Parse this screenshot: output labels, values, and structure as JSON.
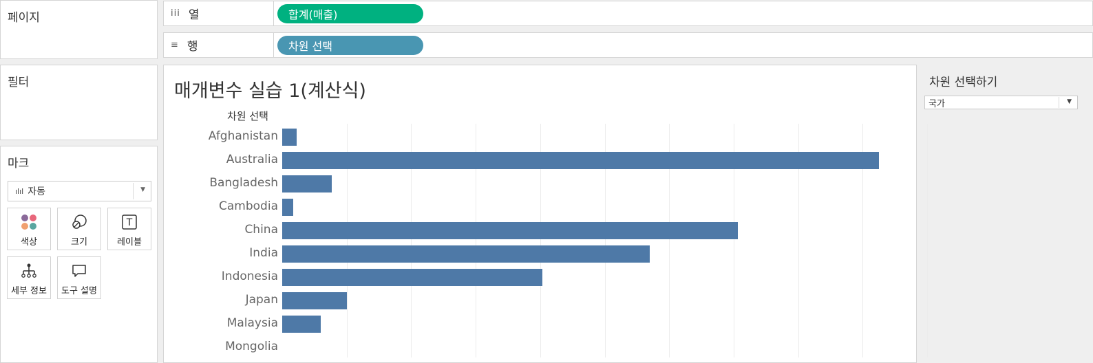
{
  "pages_panel": {
    "title": "페이지"
  },
  "columns_shelf": {
    "label": "열",
    "icon": "iii",
    "pill": "합계(매출)"
  },
  "rows_shelf": {
    "label": "행",
    "icon": "≡",
    "pill": "차원 선택"
  },
  "filters_panel": {
    "title": "필터"
  },
  "marks_panel": {
    "title": "마크",
    "type_icon": "ılıl",
    "type_value": "자동",
    "buttons": {
      "color": "색상",
      "size": "크기",
      "label": "레이블",
      "detail": "세부 정보",
      "tooltip": "도구 설명"
    }
  },
  "parameter": {
    "title": "차원 선택하기",
    "value": "국가"
  },
  "chart_data": {
    "type": "bar",
    "title": "매개변수 실습 1(계산식)",
    "axis_header": "차원 선택",
    "categories": [
      "Afghanistan",
      "Australia",
      "Bangladesh",
      "Cambodia",
      "China",
      "India",
      "Indonesia",
      "Japan",
      "Malaysia",
      "Mongolia"
    ],
    "values": [
      2.2,
      92.5,
      7.7,
      1.7,
      70.6,
      57.0,
      40.3,
      10.0,
      6.0,
      0
    ],
    "xlim": [
      0,
      100
    ],
    "grid": true,
    "bar_color": "#4e79a7"
  }
}
